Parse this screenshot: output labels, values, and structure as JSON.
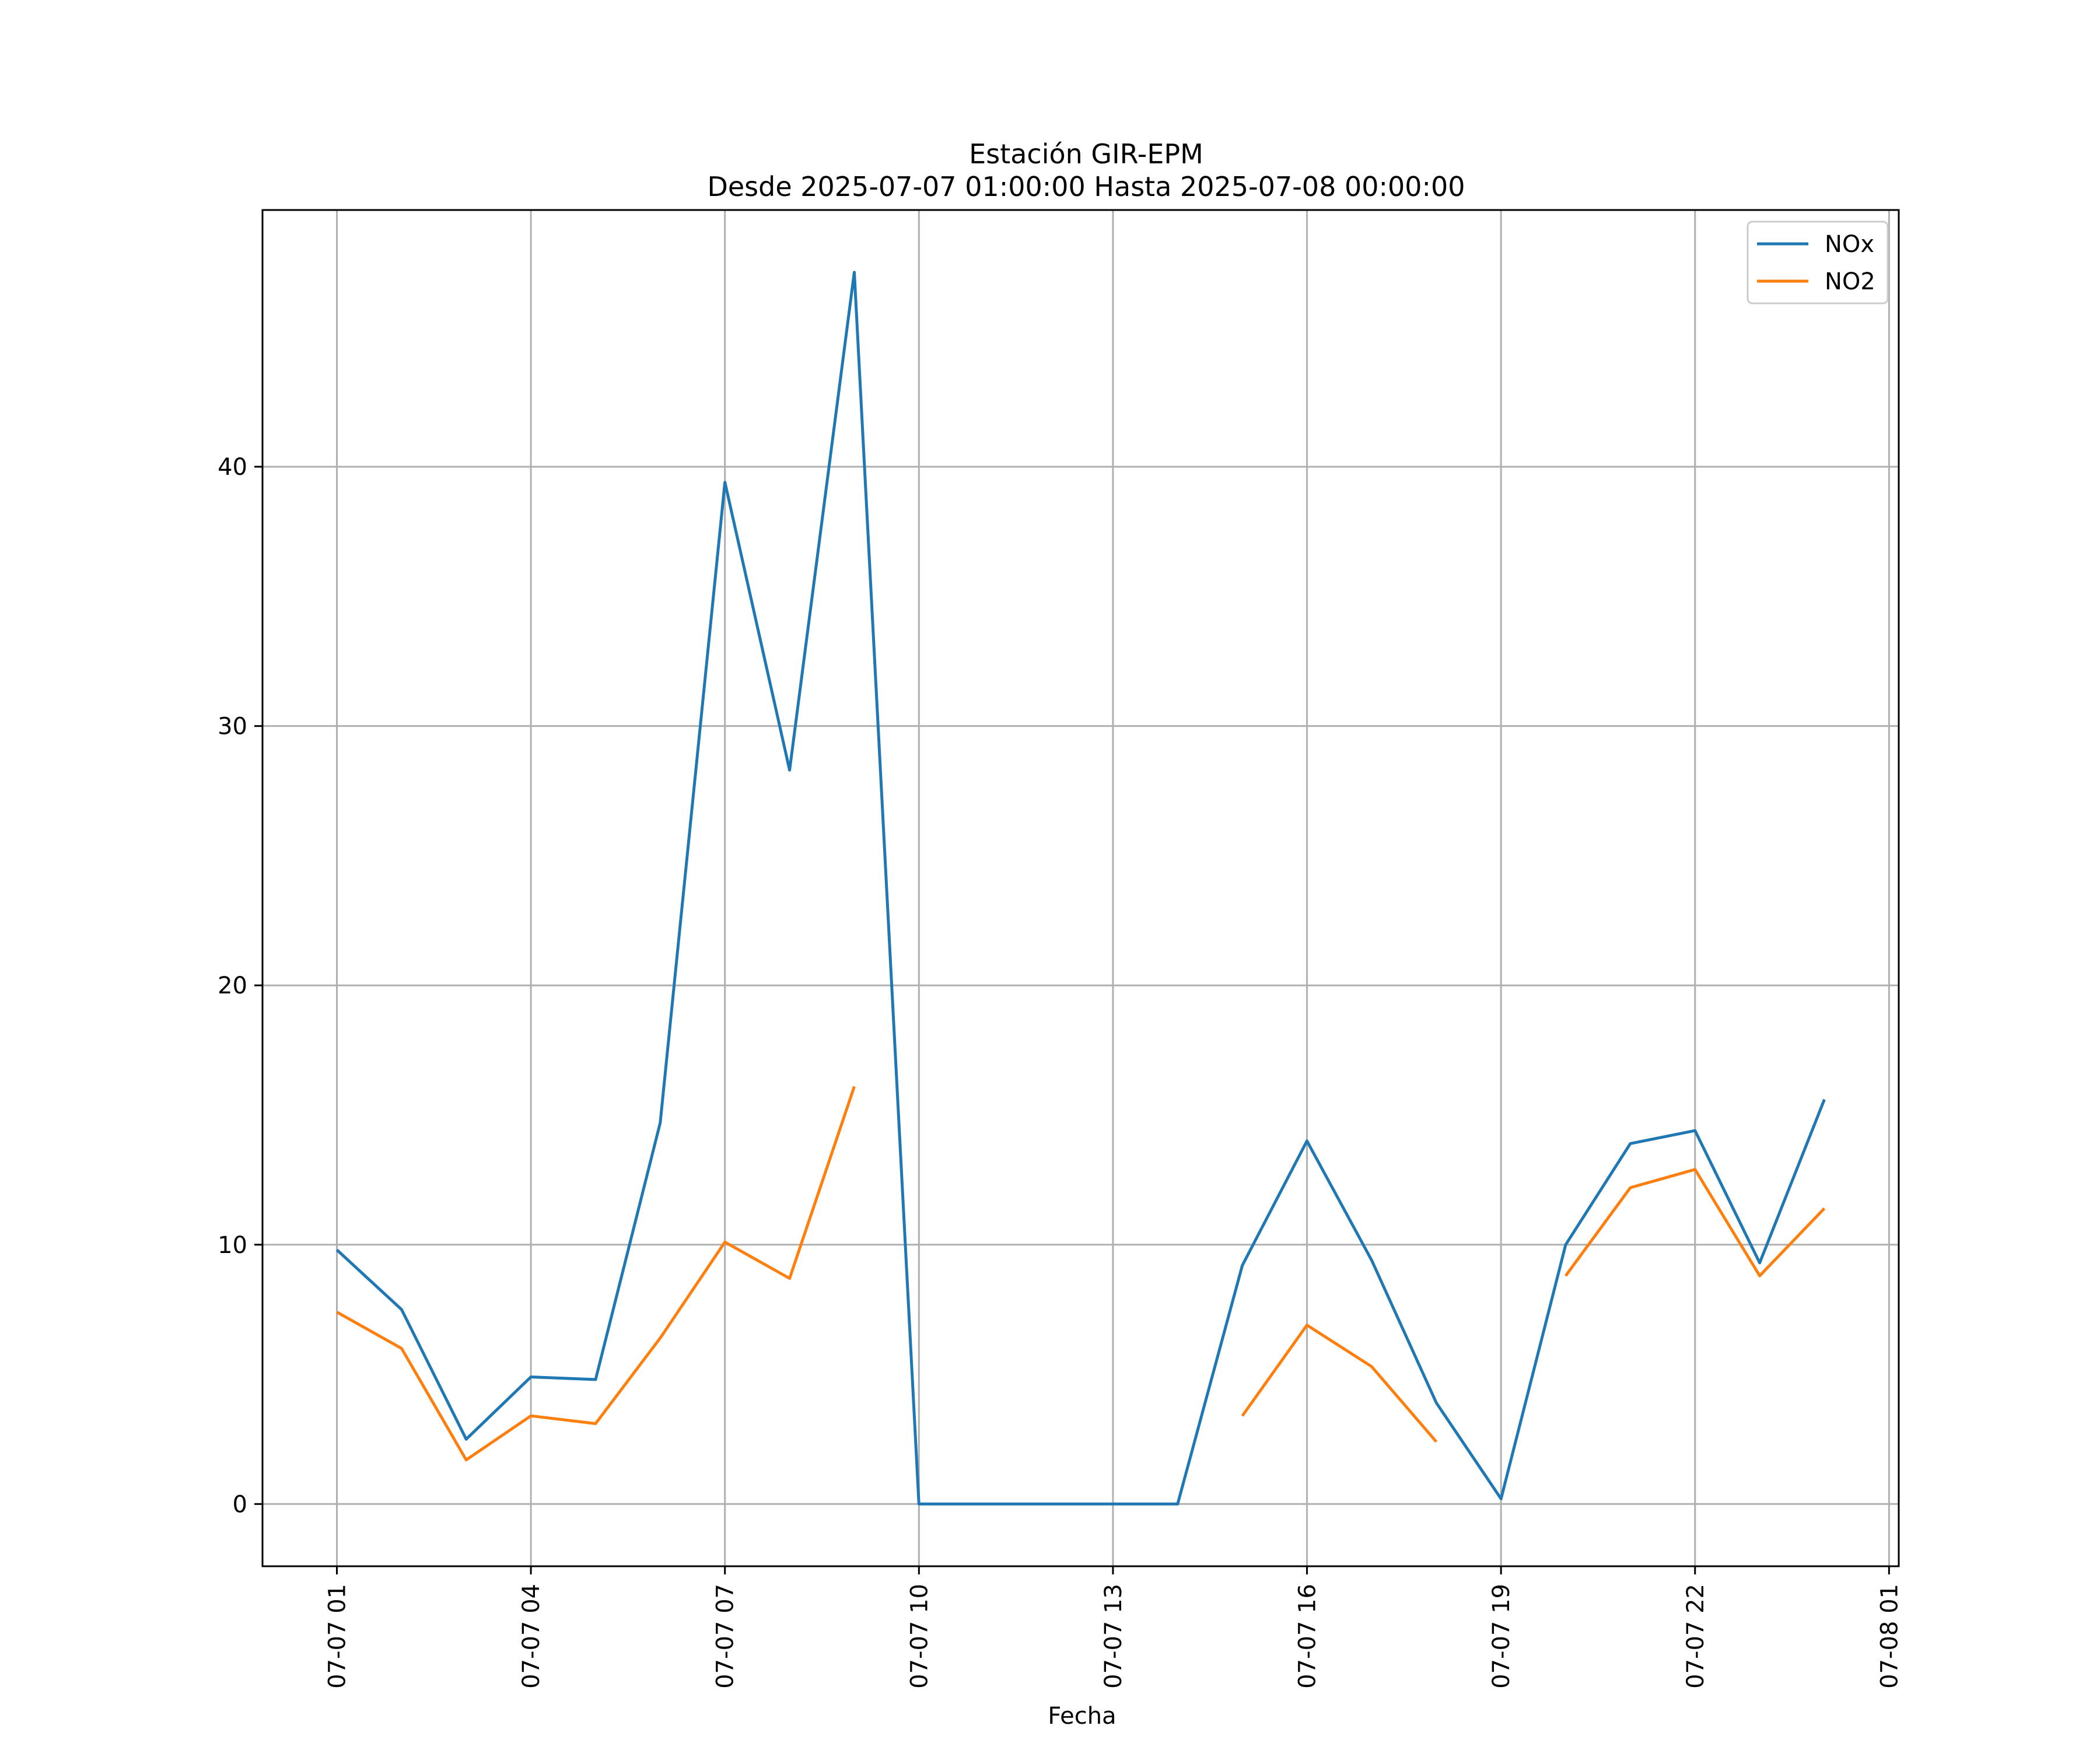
{
  "chart_data": {
    "type": "line",
    "title": "Estación GIR-EPM",
    "subtitle": "Desde 2025-07-07 01:00:00 Hasta 2025-07-08 00:00:00",
    "xlabel": "Fecha",
    "ylabel": "",
    "x": [
      "2025-07-07 01:00",
      "2025-07-07 02:00",
      "2025-07-07 03:00",
      "2025-07-07 04:00",
      "2025-07-07 05:00",
      "2025-07-07 06:00",
      "2025-07-07 07:00",
      "2025-07-07 08:00",
      "2025-07-07 09:00",
      "2025-07-07 10:00",
      "2025-07-07 11:00",
      "2025-07-07 12:00",
      "2025-07-07 13:00",
      "2025-07-07 14:00",
      "2025-07-07 15:00",
      "2025-07-07 16:00",
      "2025-07-07 17:00",
      "2025-07-07 18:00",
      "2025-07-07 19:00",
      "2025-07-07 20:00",
      "2025-07-07 21:00",
      "2025-07-07 22:00",
      "2025-07-07 23:00",
      "2025-07-08 00:00"
    ],
    "series": [
      {
        "name": "NOx",
        "color": "#1f77b4",
        "values": [
          9.8,
          7.5,
          2.5,
          4.9,
          4.8,
          14.7,
          39.4,
          28.3,
          47.5,
          0,
          0,
          0,
          0,
          0,
          9.2,
          14.0,
          9.4,
          3.9,
          0.2,
          10.0,
          13.9,
          14.4,
          9.3,
          15.6
        ]
      },
      {
        "name": "NO2",
        "color": "#ff7f0e",
        "values": [
          7.4,
          6.0,
          1.7,
          3.4,
          3.1,
          6.4,
          10.1,
          8.7,
          16.1,
          null,
          null,
          null,
          null,
          null,
          3.4,
          6.9,
          5.3,
          2.4,
          null,
          8.8,
          12.2,
          12.9,
          8.8,
          11.4
        ]
      }
    ],
    "xticks": [
      {
        "value": "2025-07-07 01:00",
        "label": "07-07 01"
      },
      {
        "value": "2025-07-07 04:00",
        "label": "07-07 04"
      },
      {
        "value": "2025-07-07 07:00",
        "label": "07-07 07"
      },
      {
        "value": "2025-07-07 10:00",
        "label": "07-07 10"
      },
      {
        "value": "2025-07-07 13:00",
        "label": "07-07 13"
      },
      {
        "value": "2025-07-07 16:00",
        "label": "07-07 16"
      },
      {
        "value": "2025-07-07 19:00",
        "label": "07-07 19"
      },
      {
        "value": "2025-07-07 22:00",
        "label": "07-07 22"
      },
      {
        "value": "2025-07-08 01:00",
        "label": "07-08 01"
      }
    ],
    "yticks": [
      0,
      10,
      20,
      30,
      40
    ],
    "xlim": [
      "2025-07-06 23:51",
      "2025-07-08 01:09"
    ],
    "ylim": [
      -2.4,
      49.9
    ],
    "grid": true,
    "legend": "top-right"
  }
}
